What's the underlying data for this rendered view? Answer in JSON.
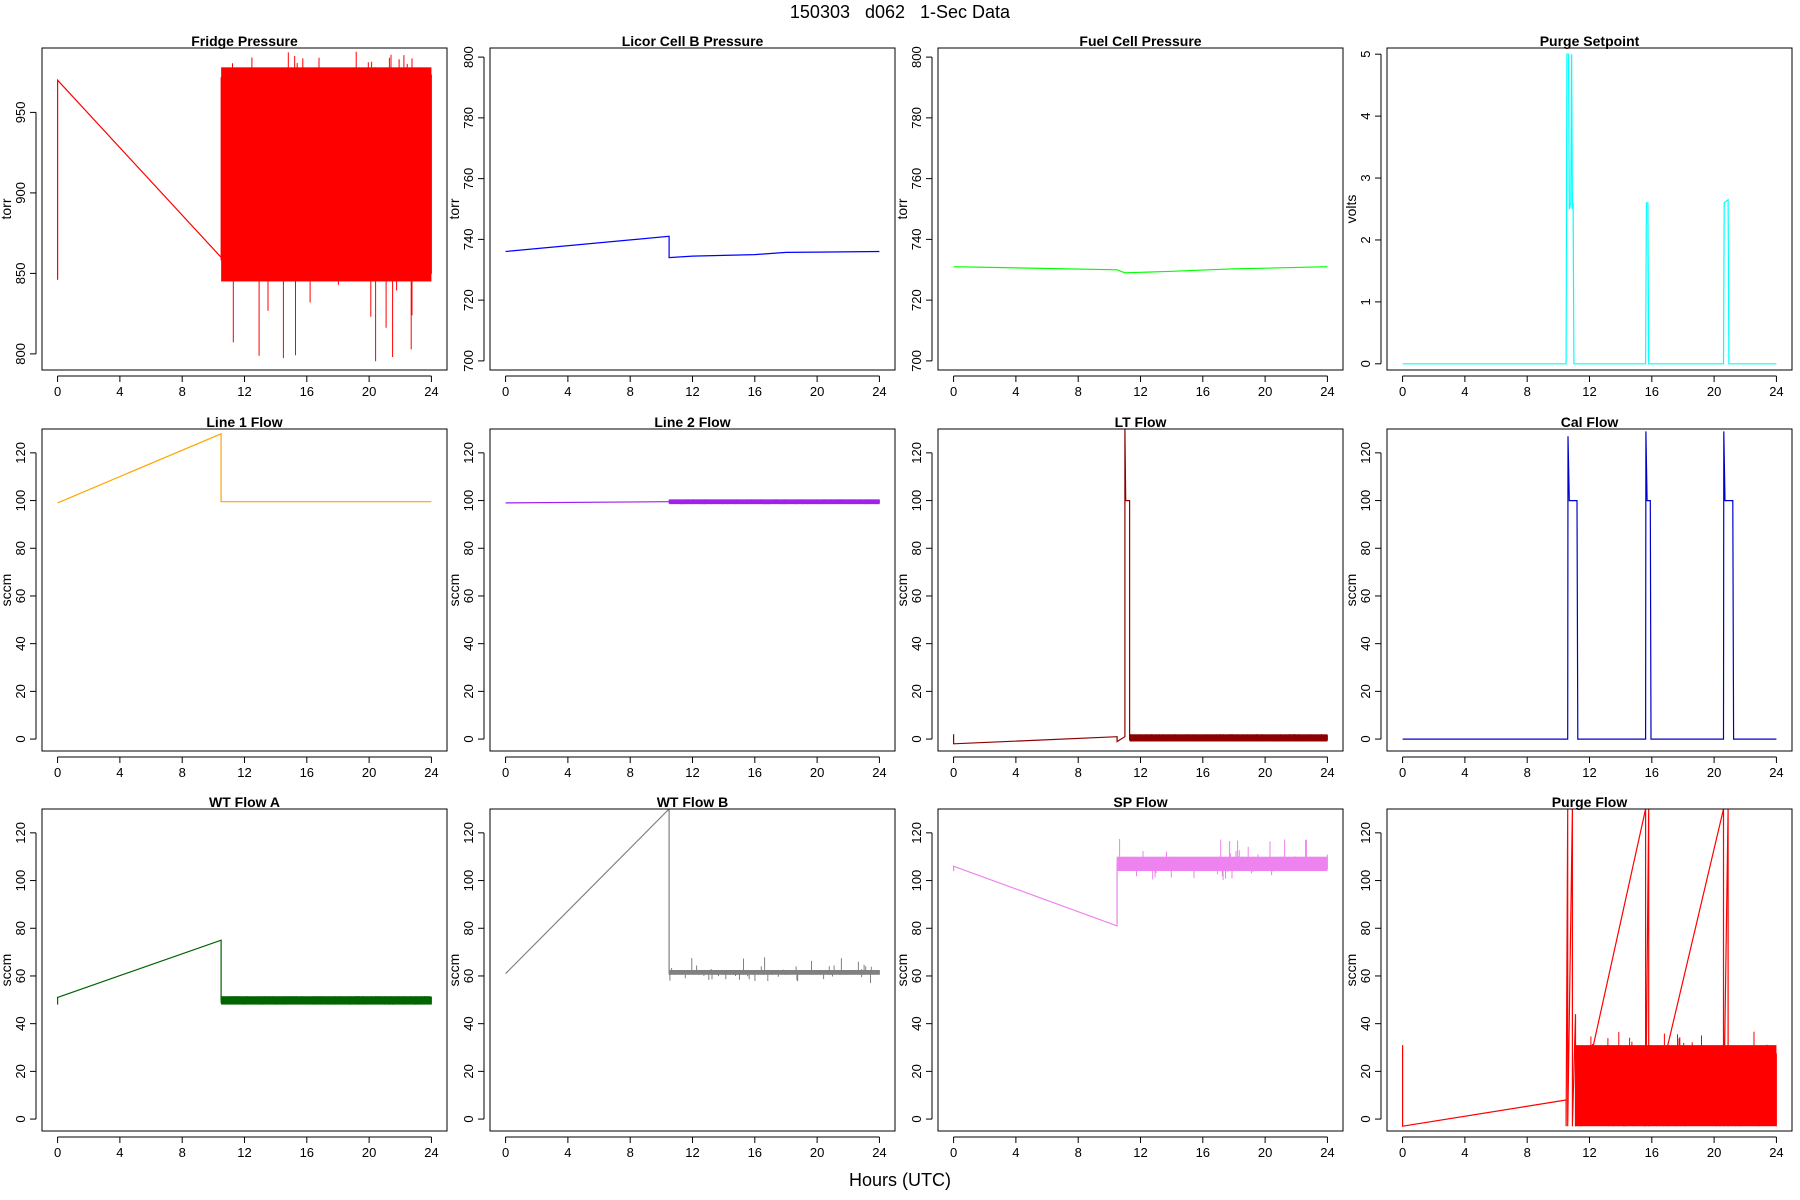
{
  "title": "150303   d062   1-Sec Data",
  "xlabel": "Hours (UTC)",
  "chart_data": [
    {
      "type": "line",
      "title": "Fridge Pressure",
      "ylabel": "torr",
      "color": "#ff0000",
      "xlim": [
        -1,
        25
      ],
      "ylim": [
        790,
        990
      ],
      "xticks": [
        0,
        4,
        8,
        12,
        16,
        20,
        24
      ],
      "yticks": [
        800,
        850,
        900,
        950
      ],
      "series": [
        {
          "x": [
            0,
            0,
            10.5
          ],
          "y": [
            846,
            970,
            860
          ]
        }
      ],
      "band": {
        "x": [
          10.5,
          24
        ],
        "low": 845,
        "high": 978,
        "min": 792,
        "max": 988
      }
    },
    {
      "type": "line",
      "title": "Licor Cell B Pressure",
      "ylabel": "torr",
      "color": "#0000ff",
      "xlim": [
        -1,
        25
      ],
      "ylim": [
        697,
        803
      ],
      "xticks": [
        0,
        4,
        8,
        12,
        16,
        20,
        24
      ],
      "yticks": [
        700,
        720,
        740,
        760,
        780,
        800
      ],
      "series": [
        {
          "x": [
            0,
            10.5,
            10.5,
            12,
            16,
            18,
            20,
            24
          ],
          "y": [
            736,
            741,
            734,
            734.5,
            735,
            735.7,
            735.8,
            736
          ]
        }
      ],
      "band": null
    },
    {
      "type": "line",
      "title": "Fuel Cell Pressure",
      "ylabel": "torr",
      "color": "#00ff00",
      "xlim": [
        -1,
        25
      ],
      "ylim": [
        697,
        803
      ],
      "xticks": [
        0,
        4,
        8,
        12,
        16,
        20,
        24
      ],
      "yticks": [
        700,
        720,
        740,
        760,
        780,
        800
      ],
      "series": [
        {
          "x": [
            0,
            10.5,
            11,
            14,
            18,
            20,
            24
          ],
          "y": [
            731,
            730,
            729,
            729.5,
            730.3,
            730.5,
            731
          ]
        }
      ],
      "band": null
    },
    {
      "type": "line",
      "title": "Purge Setpoint",
      "ylabel": "volts",
      "color": "#00ffff",
      "xlim": [
        -1,
        25
      ],
      "ylim": [
        -0.1,
        5.1
      ],
      "xticks": [
        0,
        4,
        8,
        12,
        16,
        20,
        24
      ],
      "yticks": [
        0,
        1,
        2,
        3,
        4,
        5
      ],
      "series": [
        {
          "x": [
            0,
            10.5,
            10.55,
            10.65,
            10.7,
            10.8,
            10.85,
            10.9,
            10.95,
            11.0,
            15.6,
            15.65,
            15.75,
            15.8,
            20.6,
            20.65,
            20.9,
            20.95,
            24
          ],
          "y": [
            0,
            0,
            5,
            5,
            2.5,
            2.6,
            5,
            2.5,
            2.6,
            0,
            0,
            2.6,
            2.6,
            0,
            0,
            2.6,
            2.65,
            0,
            0
          ]
        }
      ],
      "band": null
    },
    {
      "type": "line",
      "title": "Line 1 Flow",
      "ylabel": "sccm",
      "color": "#ffa500",
      "xlim": [
        -1,
        25
      ],
      "ylim": [
        -5,
        130
      ],
      "xticks": [
        0,
        4,
        8,
        12,
        16,
        20,
        24
      ],
      "yticks": [
        0,
        20,
        40,
        60,
        80,
        100,
        120
      ],
      "series": [
        {
          "x": [
            0,
            10.5,
            10.5,
            24
          ],
          "y": [
            99,
            128,
            99.5,
            99.5
          ]
        }
      ],
      "band": null
    },
    {
      "type": "line",
      "title": "Line 2 Flow",
      "ylabel": "sccm",
      "color": "#a020f0",
      "xlim": [
        -1,
        25
      ],
      "ylim": [
        -5,
        130
      ],
      "xticks": [
        0,
        4,
        8,
        12,
        16,
        20,
        24
      ],
      "yticks": [
        0,
        20,
        40,
        60,
        80,
        100,
        120
      ],
      "series": [
        {
          "x": [
            0,
            10.5
          ],
          "y": [
            99,
            99.5
          ]
        }
      ],
      "band": {
        "x": [
          10.5,
          24
        ],
        "low": 98.5,
        "high": 100.5,
        "min": 98.5,
        "max": 100.5
      }
    },
    {
      "type": "line",
      "title": "LT Flow",
      "ylabel": "sccm",
      "color": "#8b0000",
      "xlim": [
        -1,
        25
      ],
      "ylim": [
        -5,
        130
      ],
      "xticks": [
        0,
        4,
        8,
        12,
        16,
        20,
        24
      ],
      "yticks": [
        0,
        20,
        40,
        60,
        80,
        100,
        120
      ],
      "series": [
        {
          "x": [
            0,
            0,
            10.5,
            10.5,
            11,
            11,
            11.05,
            11.05,
            11.3,
            11.3,
            24
          ],
          "y": [
            2,
            -2,
            1,
            -1,
            1,
            130,
            100,
            100,
            100,
            0,
            0
          ]
        }
      ],
      "band": {
        "x": [
          11.3,
          24
        ],
        "low": -1,
        "high": 2,
        "min": -1,
        "max": 2
      }
    },
    {
      "type": "line",
      "title": "Cal Flow",
      "ylabel": "sccm",
      "color": "#0000cd",
      "xlim": [
        -1,
        25
      ],
      "ylim": [
        -5,
        130
      ],
      "xticks": [
        0,
        4,
        8,
        12,
        16,
        20,
        24
      ],
      "yticks": [
        0,
        20,
        40,
        60,
        80,
        100,
        120
      ],
      "series": [
        {
          "x": [
            0,
            10.6,
            10.62,
            10.7,
            11.2,
            11.25,
            15.6,
            15.62,
            15.7,
            15.9,
            15.95,
            20.6,
            20.62,
            20.7,
            21.2,
            21.25,
            24
          ],
          "y": [
            0,
            0,
            127,
            100,
            100,
            0,
            0,
            129,
            100,
            100,
            0,
            0,
            129,
            100,
            100,
            0,
            0
          ]
        }
      ],
      "band": null
    },
    {
      "type": "line",
      "title": "WT Flow A",
      "ylabel": "sccm",
      "color": "#006400",
      "xlim": [
        -1,
        25
      ],
      "ylim": [
        -5,
        130
      ],
      "xticks": [
        0,
        4,
        8,
        12,
        16,
        20,
        24
      ],
      "yticks": [
        0,
        20,
        40,
        60,
        80,
        100,
        120
      ],
      "series": [
        {
          "x": [
            0,
            0,
            10.5,
            10.5,
            24
          ],
          "y": [
            48,
            51,
            75,
            50,
            50
          ]
        }
      ],
      "band": {
        "x": [
          10.5,
          24
        ],
        "low": 48,
        "high": 51.5,
        "min": 48,
        "max": 51.5
      }
    },
    {
      "type": "line",
      "title": "WT Flow B",
      "ylabel": "sccm",
      "color": "#808080",
      "xlim": [
        -1,
        25
      ],
      "ylim": [
        -5,
        130
      ],
      "xticks": [
        0,
        4,
        8,
        12,
        16,
        20,
        24
      ],
      "yticks": [
        0,
        20,
        40,
        60,
        80,
        100,
        120
      ],
      "series": [
        {
          "x": [
            0,
            10.5,
            10.5,
            24
          ],
          "y": [
            61,
            130,
            61.5,
            61.5
          ]
        }
      ],
      "band": {
        "x": [
          10.5,
          24
        ],
        "low": 60.5,
        "high": 62.5,
        "min": 57,
        "max": 68
      }
    },
    {
      "type": "line",
      "title": "SP Flow",
      "ylabel": "sccm",
      "color": "#ee82ee",
      "xlim": [
        -1,
        25
      ],
      "ylim": [
        -5,
        130
      ],
      "xticks": [
        0,
        4,
        8,
        12,
        16,
        20,
        24
      ],
      "yticks": [
        0,
        20,
        40,
        60,
        80,
        100,
        120
      ],
      "series": [
        {
          "x": [
            0,
            0,
            10.5,
            10.5,
            24
          ],
          "y": [
            104,
            106,
            81,
            107,
            107
          ]
        }
      ],
      "band": {
        "x": [
          10.5,
          24
        ],
        "low": 104,
        "high": 110,
        "min": 100,
        "max": 118
      }
    },
    {
      "type": "line",
      "title": "Purge Flow",
      "ylabel": "sccm",
      "color": "#ff0000",
      "xlim": [
        -1,
        25
      ],
      "ylim": [
        -5,
        130
      ],
      "xticks": [
        0,
        4,
        8,
        12,
        16,
        20,
        24
      ],
      "yticks": [
        0,
        20,
        40,
        60,
        80,
        100,
        120
      ],
      "series": [
        {
          "x": [
            0,
            0,
            10.5,
            10.5,
            10.6,
            10.6,
            10.9,
            10.9,
            11.1,
            11.1,
            15.6,
            15.6,
            15.8,
            15.8,
            20.6,
            20.6,
            20.9,
            20.9
          ],
          "y": [
            31,
            -3,
            8,
            -3,
            130,
            -3,
            130,
            -3,
            44,
            -3,
            130,
            -3,
            130,
            -3,
            130,
            -3,
            130,
            -3
          ]
        }
      ],
      "band": {
        "x": [
          11.1,
          24
        ],
        "low": -3,
        "high": 31,
        "min": -3,
        "max": 37
      }
    }
  ]
}
